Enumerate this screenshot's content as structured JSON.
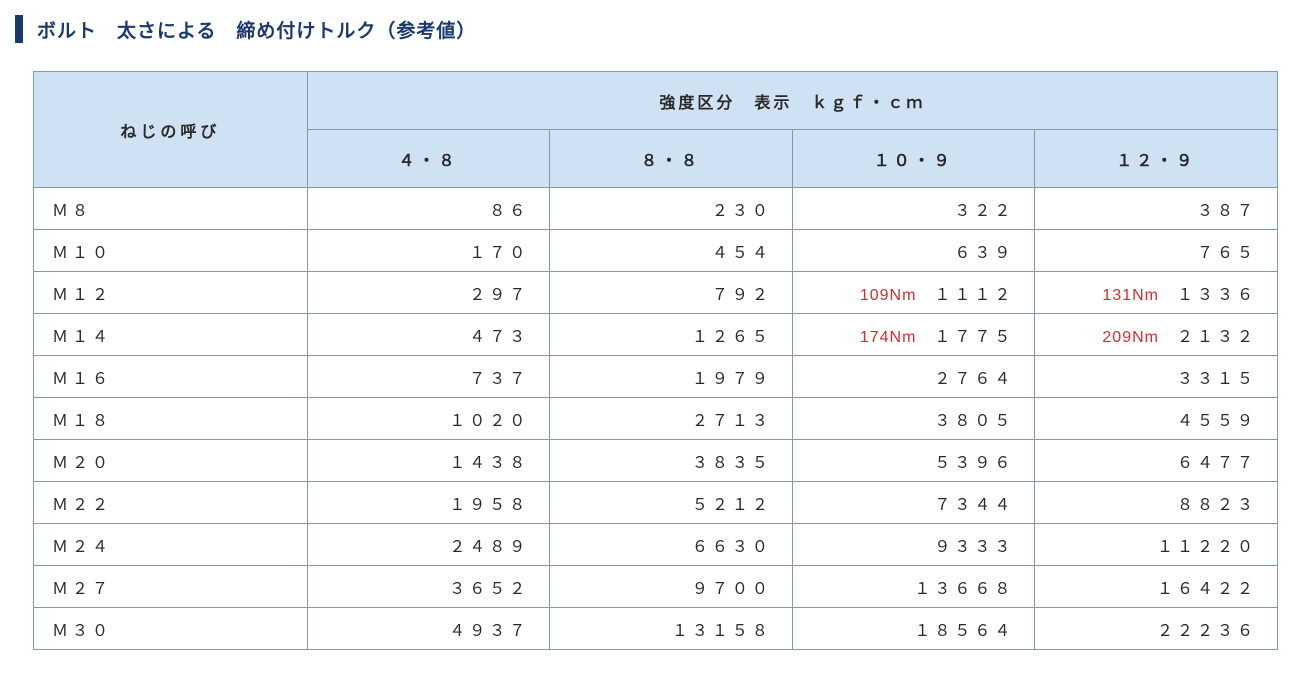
{
  "title": "ボルト　太さによる　締め付けトルク（参考値）",
  "table": {
    "type": "table",
    "row_header": "ねじの呼び",
    "group_header": "強度区分　表示　ｋｇｆ・ｃｍ",
    "columns": [
      "４・８",
      "８・８",
      "１０・９",
      "１２・９"
    ],
    "rows": [
      {
        "label": "Ｍ８",
        "values": [
          "８６",
          "２３０",
          "３２２",
          "３８７"
        ]
      },
      {
        "label": "Ｍ１０",
        "values": [
          "１７０",
          "４５４",
          "６３９",
          "７６５"
        ]
      },
      {
        "label": "Ｍ１２",
        "values": [
          "２９７",
          "７９２",
          "１１１２",
          "１３３６"
        ],
        "annot": [
          null,
          null,
          "109Nm",
          "131Nm"
        ]
      },
      {
        "label": "Ｍ１４",
        "values": [
          "４７３",
          "１２６５",
          "１７７５",
          "２１３２"
        ],
        "annot": [
          null,
          null,
          "174Nm",
          "209Nm"
        ]
      },
      {
        "label": "Ｍ１６",
        "values": [
          "７３７",
          "１９７９",
          "２７６４",
          "３３１５"
        ]
      },
      {
        "label": "Ｍ１８",
        "values": [
          "１０２０",
          "２７１３",
          "３８０５",
          "４５５９"
        ]
      },
      {
        "label": "Ｍ２０",
        "values": [
          "１４３８",
          "３８３５",
          "５３９６",
          "６４７７"
        ]
      },
      {
        "label": "Ｍ２２",
        "values": [
          "１９５８",
          "５２１２",
          "７３４４",
          "８８２３"
        ]
      },
      {
        "label": "Ｍ２４",
        "values": [
          "２４８９",
          "６６３０",
          "９３３３",
          "１１２２０"
        ]
      },
      {
        "label": "Ｍ２７",
        "values": [
          "３６５２",
          "９７００",
          "１３６６８",
          "１６４２２"
        ]
      },
      {
        "label": "Ｍ３０",
        "values": [
          "４９３７",
          "１３１５８",
          "１８５６４",
          "２２２３６"
        ]
      }
    ],
    "colors": {
      "header_bg": "#cfe2f3",
      "border": "#7d99b8",
      "title_accent": "#1a3a6e",
      "text": "#2a2a2a",
      "annotation": "#d92b2b",
      "background": "#ffffff"
    },
    "col_widths_pct": [
      22,
      19.5,
      19.5,
      19.5,
      19.5
    ],
    "fontsize_header": 16,
    "fontsize_cell": 16,
    "fontsize_title": 19
  }
}
